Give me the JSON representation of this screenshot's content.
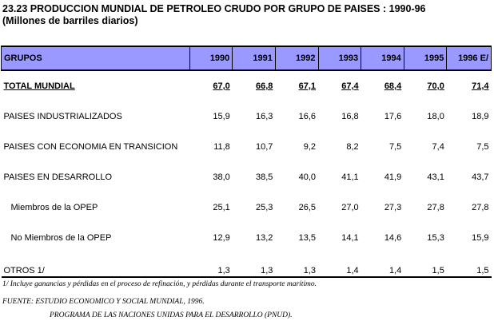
{
  "header": {
    "title": "23.23  PRODUCCION MUNDIAL DE PETROLEO CRUDO POR GRUPO DE PAISES : 1990-96",
    "subtitle": "(Millones de barriles diarios)"
  },
  "table": {
    "columns": [
      "GRUPOS",
      "1990",
      "1991",
      "1992",
      "1993",
      "1994",
      "1995",
      "1996 E/"
    ],
    "rows": [
      {
        "label": "TOTAL MUNDIAL",
        "values": [
          "67,0",
          "66,8",
          "67,1",
          "67,4",
          "68,4",
          "70,0",
          "71,4"
        ]
      },
      {
        "label": "PAISES INDUSTRIALIZADOS",
        "values": [
          "15,9",
          "16,3",
          "16,6",
          "16,8",
          "17,6",
          "18,0",
          "18,9"
        ]
      },
      {
        "label": "PAISES CON ECONOMIA EN TRANSICION",
        "values": [
          "11,8",
          "10,7",
          "9,2",
          "8,2",
          "7,5",
          "7,4",
          "7,5"
        ]
      },
      {
        "label": "PAISES EN DESARROLLO",
        "values": [
          "38,0",
          "38,5",
          "40,0",
          "41,1",
          "41,9",
          "43,1",
          "43,7"
        ]
      },
      {
        "label": "Miembros de la OPEP",
        "values": [
          "25,1",
          "25,3",
          "26,5",
          "27,0",
          "27,3",
          "27,8",
          "27,8"
        ]
      },
      {
        "label": "No Miembros de la OPEP",
        "values": [
          "12,9",
          "13,2",
          "13,5",
          "14,1",
          "14,6",
          "15,3",
          "15,9"
        ]
      },
      {
        "label": "OTROS 1/",
        "values": [
          "1,3",
          "1,3",
          "1,3",
          "1,4",
          "1,4",
          "1,5",
          "1,5"
        ]
      }
    ]
  },
  "footnotes": {
    "note1": "1/ Incluye ganancias y pérdidas en el proceso de refinación, y pérdidas durante el transporte marítimo.",
    "source": "FUENTE: ESTUDIO ECONOMICO Y SOCIAL MUNDIAL, 1996.",
    "source2": "PROGRAMA DE LAS NACIONES UNIDAS PARA EL DESARROLLO (PNUD)."
  },
  "colors": {
    "header_bg": "#9999ff"
  }
}
